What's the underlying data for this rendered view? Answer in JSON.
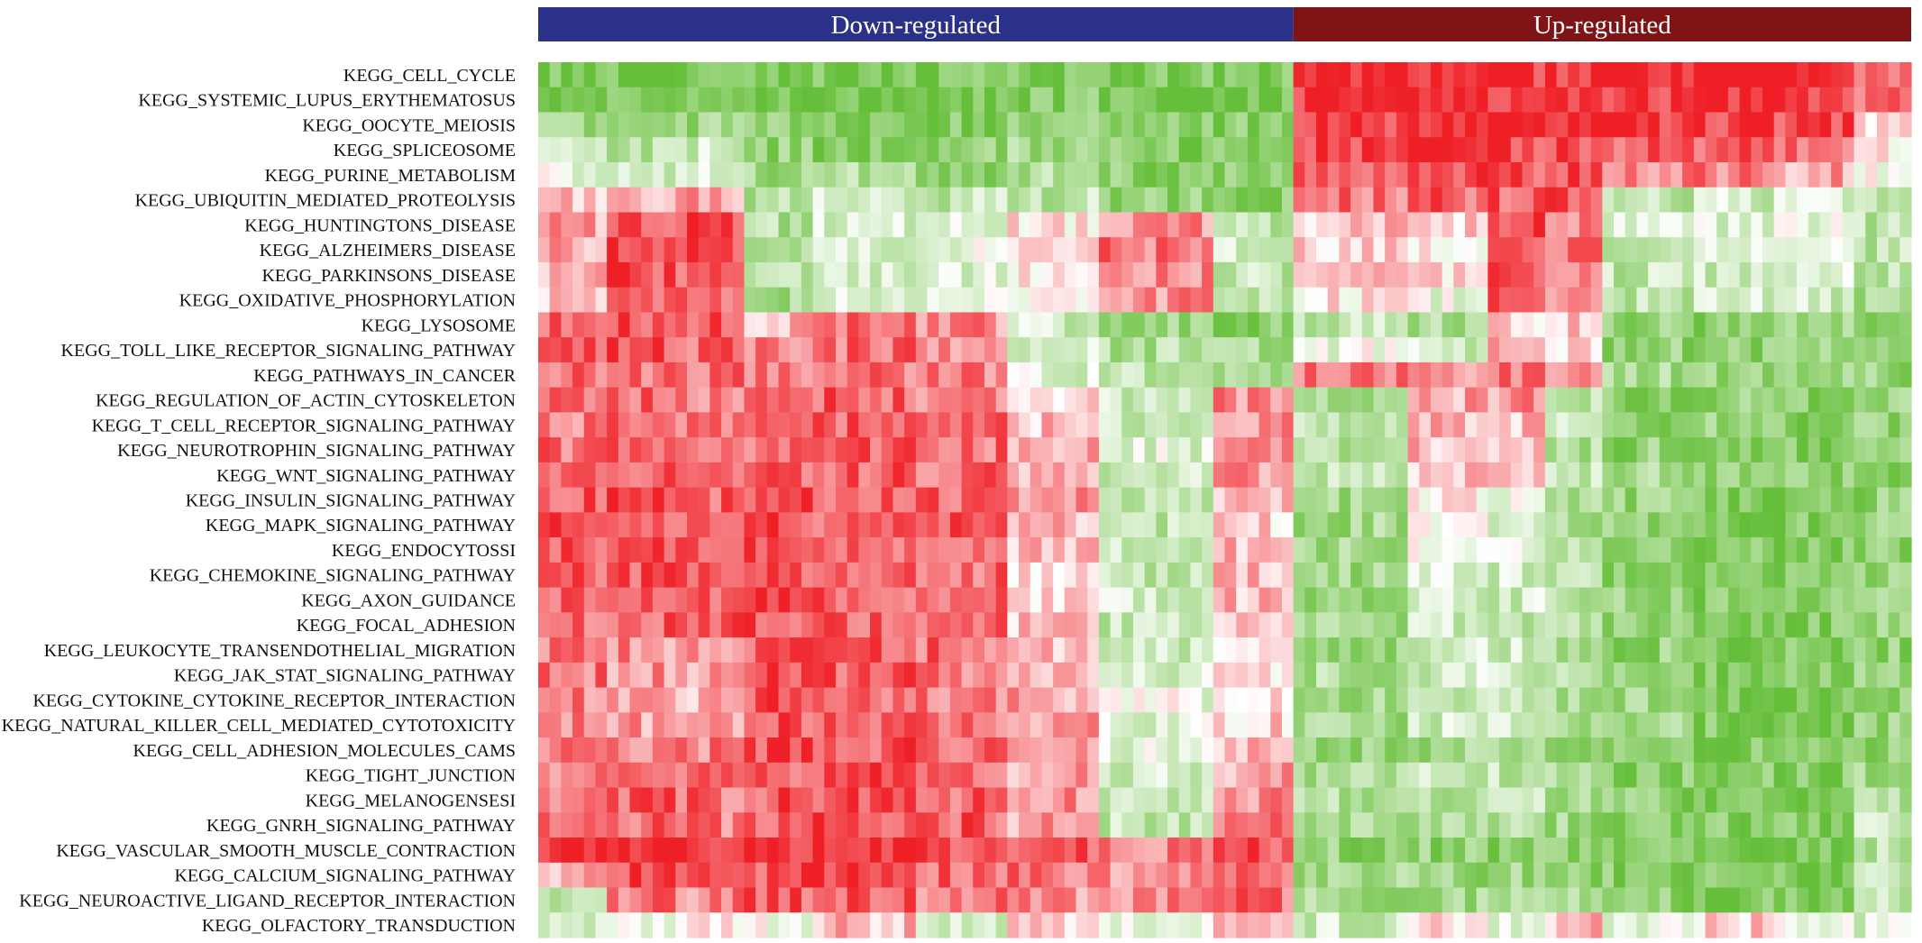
{
  "chart_data": {
    "type": "heatmap",
    "groups": [
      {
        "label": "Down-regulated",
        "color": "#2b3188",
        "columns": 66
      },
      {
        "label": "Up-regulated",
        "color": "#7f1416",
        "columns": 54
      }
    ],
    "rows": [
      "KEGG_CELL_CYCLE",
      "KEGG_SYSTEMIC_LUPUS_ERYTHEMATOSUS",
      "KEGG_OOCYTE_MEIOSIS",
      "KEGG_SPLICEOSOME",
      "KEGG_PURINE_METABOLISM",
      "KEGG_UBIQUITIN_MEDIATED_PROTEOLYSIS",
      "KEGG_HUNTINGTONS_DISEASE",
      "KEGG_ALZHEIMERS_DISEASE",
      "KEGG_PARKINSONS_DISEASE",
      "KEGG_OXIDATIVE_PHOSPHORYLATION",
      "KEGG_LYSOSOME",
      "KEGG_TOLL_LIKE_RECEPTOR_SIGNALING_PATHWAY",
      "KEGG_PATHWAYS_IN_CANCER",
      "KEGG_REGULATION_OF_ACTIN_CYTOSKELETON",
      "KEGG_T_CELL_RECEPTOR_SIGNALING_PATHWAY",
      "KEGG_NEUROTROPHIN_SIGNALING_PATHWAY",
      "KEGG_WNT_SIGNALING_PATHWAY",
      "KEGG_INSULIN_SIGNALING_PATHWAY",
      "KEGG_MAPK_SIGNALING_PATHWAY",
      "KEGG_ENDOCYTOSSI",
      "KEGG_CHEMOKINE_SIGNALING_PATHWAY",
      "KEGG_AXON_GUIDANCE",
      "KEGG_FOCAL_ADHESION",
      "KEGG_LEUKOCYTE_TRANSENDOTHELIAL_MIGRATION",
      "KEGG_JAK_STAT_SIGNALING_PATHWAY",
      "KEGG_CYTOKINE_CYTOKINE_RECEPTOR_INTERACTION",
      "KEGG_NATURAL_KILLER_CELL_MEDIATED_CYTOTOXICITY",
      "KEGG_CELL_ADHESION_MOLECULES_CAMS",
      "KEGG_TIGHT_JUNCTION",
      "KEGG_MELANOGENSESI",
      "KEGG_GNRH_SIGNALING_PATHWAY",
      "KEGG_VASCULAR_SMOOTH_MUSCLE_CONTRACTION",
      "KEGG_CALCIUM_SIGNALING_PATHWAY",
      "KEGG_NEUROACTIVE_LIGAND_RECEPTOR_INTERACTION",
      "KEGG_OLFACTORY_TRANSDUCTION"
    ],
    "block_columns": [
      0,
      6,
      12,
      18,
      24,
      33,
      41,
      49,
      59,
      66,
      76,
      83,
      88,
      93,
      101,
      108,
      115,
      120
    ],
    "block_values": [
      [
        -0.8,
        -0.85,
        -0.8,
        -0.85,
        -0.85,
        -0.85,
        -0.8,
        -0.85,
        -0.85,
        0.95,
        0.95,
        0.9,
        0.95,
        0.9,
        0.95,
        0.9,
        0.6
      ],
      [
        -0.8,
        -0.85,
        -0.8,
        -0.85,
        -0.85,
        -0.85,
        -0.8,
        -0.85,
        -0.85,
        0.95,
        0.95,
        0.9,
        0.95,
        0.9,
        0.95,
        0.9,
        0.6
      ],
      [
        -0.6,
        -0.7,
        -0.6,
        -0.75,
        -0.8,
        -0.8,
        -0.7,
        -0.8,
        -0.8,
        0.9,
        0.9,
        0.85,
        0.9,
        0.85,
        0.85,
        0.8,
        0.2
      ],
      [
        -0.3,
        -0.5,
        -0.3,
        -0.7,
        -0.8,
        -0.75,
        -0.6,
        -0.8,
        -0.8,
        0.85,
        0.9,
        0.85,
        0.85,
        0.7,
        0.75,
        0.6,
        0.1
      ],
      [
        -0.1,
        -0.4,
        -0.2,
        -0.6,
        -0.5,
        -0.7,
        -0.5,
        -0.75,
        -0.75,
        0.8,
        0.85,
        0.8,
        0.8,
        0.5,
        0.6,
        0.4,
        -0.1
      ],
      [
        0.3,
        0.2,
        0.4,
        -0.5,
        -0.3,
        -0.4,
        -0.4,
        -0.7,
        -0.7,
        0.6,
        0.7,
        0.7,
        0.7,
        -0.4,
        -0.3,
        -0.2,
        -0.3
      ],
      [
        0.4,
        0.8,
        0.75,
        -0.5,
        -0.2,
        -0.1,
        0.1,
        0.5,
        -0.4,
        0.3,
        0.2,
        0.8,
        0.6,
        -0.3,
        -0.2,
        -0.1,
        -0.4
      ],
      [
        0.4,
        0.85,
        0.8,
        -0.5,
        -0.2,
        -0.1,
        0.2,
        0.6,
        -0.3,
        0.2,
        0.1,
        0.85,
        0.6,
        -0.4,
        -0.3,
        -0.2,
        -0.4
      ],
      [
        0.3,
        0.8,
        0.75,
        -0.5,
        -0.3,
        -0.2,
        0.1,
        0.5,
        -0.4,
        0.2,
        0.1,
        0.8,
        0.55,
        -0.4,
        -0.3,
        -0.2,
        -0.4
      ],
      [
        0.2,
        0.75,
        0.7,
        -0.6,
        -0.2,
        -0.1,
        0.0,
        0.5,
        -0.4,
        0.1,
        -0.1,
        0.75,
        0.5,
        -0.4,
        -0.3,
        -0.3,
        -0.5
      ],
      [
        0.75,
        0.8,
        0.75,
        0.3,
        0.6,
        0.5,
        -0.3,
        -0.6,
        -0.7,
        -0.4,
        -0.5,
        0.2,
        0.3,
        -0.7,
        -0.7,
        -0.6,
        -0.7
      ],
      [
        0.7,
        0.75,
        0.7,
        0.6,
        0.65,
        0.55,
        -0.2,
        -0.5,
        -0.6,
        -0.1,
        -0.3,
        0.4,
        0.2,
        -0.7,
        -0.7,
        -0.6,
        -0.7
      ],
      [
        0.6,
        0.65,
        0.6,
        0.55,
        0.6,
        0.55,
        -0.2,
        -0.4,
        -0.5,
        0.6,
        0.55,
        0.6,
        0.5,
        -0.6,
        -0.65,
        -0.6,
        -0.7
      ],
      [
        0.6,
        0.65,
        0.6,
        0.65,
        0.7,
        0.6,
        0.2,
        -0.3,
        0.5,
        -0.5,
        0.4,
        0.45,
        -0.4,
        -0.7,
        -0.7,
        -0.75,
        -0.7
      ],
      [
        0.6,
        0.65,
        0.6,
        0.7,
        0.7,
        0.6,
        0.3,
        -0.3,
        0.5,
        -0.4,
        0.35,
        0.3,
        -0.4,
        -0.7,
        -0.7,
        -0.75,
        -0.7
      ],
      [
        0.65,
        0.7,
        0.65,
        0.7,
        0.75,
        0.65,
        0.4,
        -0.2,
        0.6,
        -0.5,
        0.3,
        0.3,
        -0.5,
        -0.7,
        -0.75,
        -0.8,
        -0.7
      ],
      [
        0.7,
        0.7,
        0.65,
        0.7,
        0.7,
        0.65,
        0.4,
        -0.3,
        0.5,
        -0.4,
        0.3,
        0.2,
        -0.4,
        -0.6,
        -0.75,
        -0.75,
        -0.7
      ],
      [
        0.75,
        0.75,
        0.7,
        0.8,
        0.75,
        0.7,
        0.45,
        -0.4,
        0.3,
        -0.6,
        0.1,
        -0.1,
        -0.5,
        -0.7,
        -0.8,
        -0.8,
        -0.7
      ],
      [
        0.75,
        0.75,
        0.7,
        0.8,
        0.75,
        0.7,
        0.35,
        -0.4,
        0.2,
        -0.6,
        0.1,
        -0.2,
        -0.5,
        -0.7,
        -0.8,
        -0.8,
        -0.7
      ],
      [
        0.7,
        0.75,
        0.7,
        0.8,
        0.75,
        0.7,
        0.3,
        -0.4,
        0.3,
        -0.6,
        0.0,
        -0.2,
        -0.5,
        -0.7,
        -0.8,
        -0.8,
        -0.7
      ],
      [
        0.7,
        0.75,
        0.7,
        0.75,
        0.7,
        0.65,
        0.2,
        -0.4,
        0.3,
        -0.6,
        -0.2,
        -0.3,
        -0.5,
        -0.7,
        -0.8,
        -0.8,
        -0.7
      ],
      [
        0.7,
        0.75,
        0.7,
        0.75,
        0.7,
        0.65,
        0.2,
        -0.3,
        0.3,
        -0.6,
        -0.3,
        -0.3,
        -0.5,
        -0.7,
        -0.8,
        -0.8,
        -0.7
      ],
      [
        0.65,
        0.75,
        0.7,
        0.75,
        0.7,
        0.65,
        0.3,
        -0.4,
        0.3,
        -0.6,
        -0.3,
        -0.4,
        -0.5,
        -0.7,
        -0.8,
        -0.8,
        -0.7
      ],
      [
        0.6,
        0.5,
        0.45,
        0.75,
        0.7,
        0.65,
        0.3,
        -0.3,
        0.2,
        -0.6,
        -0.3,
        -0.3,
        -0.5,
        -0.7,
        -0.8,
        -0.8,
        -0.7
      ],
      [
        0.6,
        0.45,
        0.4,
        0.75,
        0.7,
        0.6,
        0.3,
        -0.2,
        0.2,
        -0.5,
        -0.3,
        -0.3,
        -0.5,
        -0.6,
        -0.8,
        -0.75,
        -0.7
      ],
      [
        0.55,
        0.4,
        0.35,
        0.75,
        0.7,
        0.6,
        0.4,
        -0.1,
        0.2,
        -0.6,
        -0.3,
        -0.3,
        -0.5,
        -0.6,
        -0.8,
        -0.8,
        -0.7
      ],
      [
        0.55,
        0.45,
        0.4,
        0.75,
        0.7,
        0.6,
        0.4,
        -0.2,
        0.2,
        -0.6,
        -0.3,
        -0.3,
        -0.5,
        -0.6,
        -0.8,
        -0.8,
        -0.7
      ],
      [
        0.6,
        0.6,
        0.55,
        0.8,
        0.75,
        0.7,
        0.35,
        -0.2,
        0.3,
        -0.7,
        -0.6,
        -0.5,
        -0.6,
        -0.75,
        -0.85,
        -0.85,
        -0.7
      ],
      [
        0.6,
        0.65,
        0.6,
        0.75,
        0.75,
        0.65,
        0.4,
        -0.3,
        0.4,
        -0.5,
        -0.4,
        -0.4,
        -0.6,
        -0.75,
        -0.8,
        -0.8,
        -0.6
      ],
      [
        0.65,
        0.7,
        0.65,
        0.75,
        0.75,
        0.7,
        0.45,
        -0.4,
        0.5,
        -0.5,
        -0.4,
        -0.4,
        -0.6,
        -0.75,
        -0.8,
        -0.8,
        -0.5
      ],
      [
        0.65,
        0.7,
        0.6,
        0.75,
        0.75,
        0.7,
        0.4,
        -0.4,
        0.55,
        -0.5,
        -0.45,
        -0.45,
        -0.6,
        -0.75,
        -0.8,
        -0.8,
        -0.4
      ],
      [
        0.85,
        0.9,
        0.85,
        0.95,
        0.9,
        0.85,
        0.8,
        0.6,
        0.8,
        -0.7,
        -0.7,
        -0.75,
        -0.75,
        -0.85,
        -0.85,
        -0.85,
        -0.4
      ],
      [
        0.4,
        0.8,
        0.75,
        0.8,
        0.8,
        0.7,
        0.6,
        0.5,
        0.7,
        -0.6,
        -0.65,
        -0.65,
        -0.7,
        -0.8,
        -0.8,
        -0.8,
        -0.4
      ],
      [
        -0.5,
        0.6,
        0.55,
        0.7,
        0.75,
        0.6,
        0.5,
        0.5,
        0.65,
        -0.6,
        -0.6,
        -0.6,
        -0.6,
        -0.75,
        -0.75,
        -0.75,
        -0.4
      ],
      [
        -0.3,
        -0.2,
        0.1,
        -0.1,
        0.3,
        -0.2,
        0.3,
        -0.1,
        0.2,
        -0.3,
        0.2,
        -0.2,
        0.3,
        -0.2,
        0.2,
        -0.1,
        -0.2
      ]
    ],
    "color_scale": {
      "low": "#66bf3a",
      "mid": "#ffffff",
      "high": "#ef1f26",
      "domain": [
        -1,
        0,
        1
      ]
    }
  }
}
